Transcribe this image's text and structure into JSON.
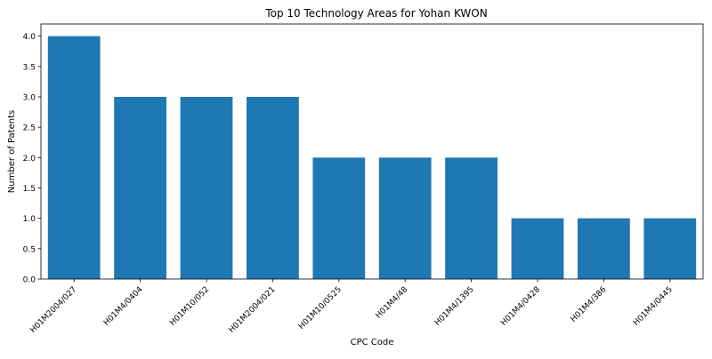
{
  "chart_data": {
    "type": "bar",
    "title": "Top 10 Technology Areas for Yohan KWON",
    "xlabel": "CPC Code",
    "ylabel": "Number of Patents",
    "categories": [
      "H01M2004/027",
      "H01M4/0404",
      "H01M10/052",
      "H01M2004/021",
      "H01M10/0525",
      "H01M4/48",
      "H01M4/1395",
      "H01M4/0428",
      "H01M4/386",
      "H01M4/0445"
    ],
    "values": [
      4,
      3,
      3,
      3,
      2,
      2,
      2,
      1,
      1,
      1
    ],
    "ylim": [
      0,
      4.2
    ],
    "yticks": [
      "0.0",
      "0.5",
      "1.0",
      "1.5",
      "2.0",
      "2.5",
      "3.0",
      "3.5",
      "4.0"
    ],
    "bar_color": "#1f77b4",
    "grid": false
  }
}
